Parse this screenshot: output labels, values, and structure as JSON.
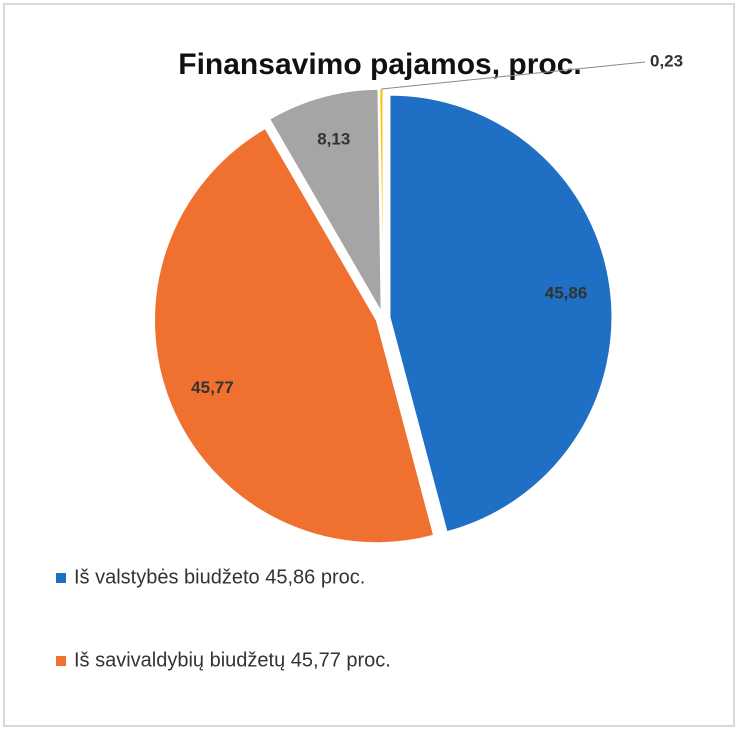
{
  "chart_data": {
    "type": "pie",
    "title": "Finansavimo pajamos, proc.",
    "categories": [
      "Iš valstybės biudžeto 45,86 proc.",
      "Iš savivaldybių biudžetų 45,77 proc.",
      null,
      null
    ],
    "values": [
      45.86,
      45.77,
      8.13,
      0.23
    ],
    "value_labels": [
      "45,86",
      "45,77",
      "8,13",
      "0,23"
    ],
    "colors": [
      "#1f6fc5",
      "#f07030",
      "#a5a5a5",
      "#ffc000"
    ],
    "legend": "bottom-left"
  }
}
